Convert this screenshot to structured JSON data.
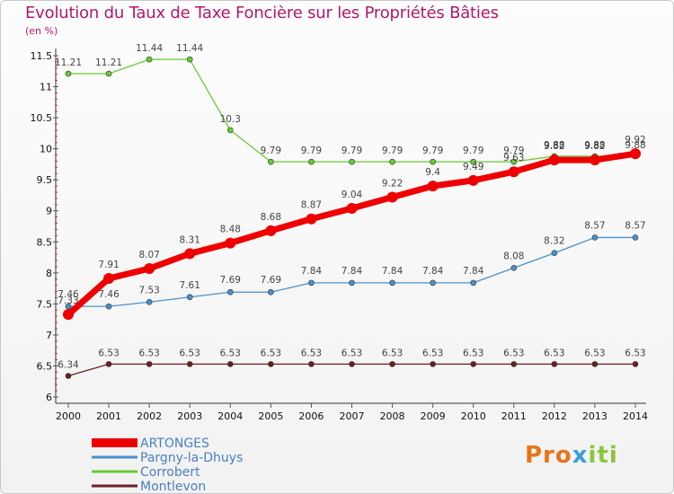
{
  "chart_data": {
    "type": "line",
    "title": "Evolution du Taux de Taxe Foncière sur les Propriétés Bâties",
    "unit_label": "(en %)",
    "xlabel": "",
    "ylabel": "(en %)",
    "ylim": [
      6,
      11.5
    ],
    "yticks": [
      "6",
      "6.5",
      "7",
      "7.5",
      "8",
      "8.5",
      "9",
      "9.5",
      "10",
      "10.5",
      "11",
      "11.5"
    ],
    "categories": [
      "2000",
      "2001",
      "2002",
      "2003",
      "2004",
      "2005",
      "2006",
      "2007",
      "2008",
      "2009",
      "2010",
      "2011",
      "2012",
      "2013",
      "2014"
    ],
    "series": [
      {
        "name": "Corrobert",
        "color": "#66cc33",
        "values": [
          11.21,
          11.21,
          11.44,
          11.44,
          10.3,
          9.79,
          9.79,
          9.79,
          9.79,
          9.79,
          9.79,
          9.79,
          9.88,
          9.88,
          9.88
        ],
        "labels": [
          "11.21",
          "11.21",
          "11.44",
          "11.44",
          "10.3",
          "9.79",
          "9.79",
          "9.79",
          "9.79",
          "9.79",
          "9.79",
          "9.79",
          "9.88",
          "9.88",
          "9.88"
        ]
      },
      {
        "name": "Pargny-la-Dhuys",
        "color": "#4a90cc",
        "values": [
          7.46,
          7.46,
          7.53,
          7.61,
          7.69,
          7.69,
          7.84,
          7.84,
          7.84,
          7.84,
          7.84,
          8.08,
          8.32,
          8.57,
          8.57
        ],
        "labels": [
          "7.46",
          "7.46",
          "7.53",
          "7.61",
          "7.69",
          "7.69",
          "7.84",
          "7.84",
          "7.84",
          "7.84",
          "7.84",
          "8.08",
          "8.32",
          "8.57",
          "8.57"
        ]
      },
      {
        "name": "Montlevon",
        "color": "#6b1f1f",
        "values": [
          6.34,
          6.53,
          6.53,
          6.53,
          6.53,
          6.53,
          6.53,
          6.53,
          6.53,
          6.53,
          6.53,
          6.53,
          6.53,
          6.53,
          6.53
        ],
        "labels": [
          "6.34",
          "6.53",
          "6.53",
          "6.53",
          "6.53",
          "6.53",
          "6.53",
          "6.53",
          "6.53",
          "6.53",
          "6.53",
          "6.53",
          "6.53",
          "6.53",
          "6.53"
        ]
      },
      {
        "name": "ARTONGES",
        "color": "#ee0000",
        "values": [
          7.33,
          7.91,
          8.07,
          8.31,
          8.48,
          8.68,
          8.87,
          9.04,
          9.22,
          9.4,
          9.49,
          9.63,
          9.82,
          9.82,
          9.92
        ],
        "labels": [
          "7.33",
          "7.91",
          "8.07",
          "8.31",
          "8.48",
          "8.68",
          "8.87",
          "9.04",
          "9.22",
          "9.4",
          "9.49",
          "9.63",
          "9.82",
          "9.82",
          "9.92"
        ]
      }
    ],
    "legend_position": "bottom-left",
    "legend": [
      "ARTONGES",
      "Pargny-la-Dhuys",
      "Corrobert",
      "Montlevon"
    ],
    "legend_colors": [
      "#ee0000",
      "#4a90cc",
      "#66cc33",
      "#6b1f1f"
    ],
    "grid": false
  },
  "logo": {
    "text_a": "Pro",
    "text_x": "x",
    "text_b": "iti"
  }
}
